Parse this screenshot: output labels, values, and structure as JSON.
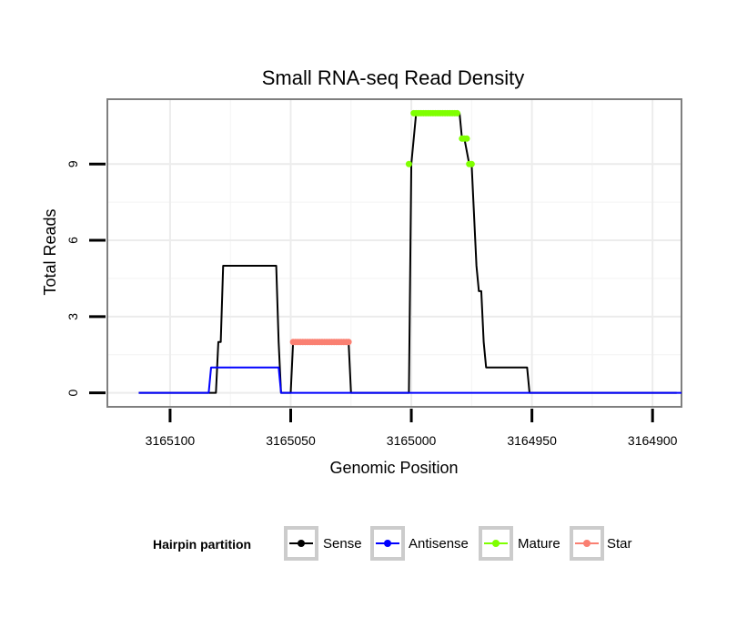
{
  "chart_data": {
    "type": "line",
    "title": "Small RNA-seq Read Density",
    "xlabel": "Genomic Position",
    "ylabel": "Total Reads",
    "x_reversed": true,
    "xlim": [
      3165126,
      3164888
    ],
    "ylim": [
      -0.55,
      11.55
    ],
    "xticks": [
      3165100,
      3165050,
      3165000,
      3164950,
      3164900
    ],
    "xtick_labels": [
      "3165100",
      "3165050",
      "3165000",
      "3164950",
      "3164900"
    ],
    "yticks": [
      0,
      3,
      6,
      9
    ],
    "ytick_labels": [
      "0",
      "3",
      "6",
      "9"
    ],
    "grid": true,
    "legend": {
      "title": "Hairpin partition",
      "position": "bottom",
      "entries": [
        {
          "name": "Sense",
          "color": "#000000"
        },
        {
          "name": "Antisense",
          "color": "#0000ff"
        },
        {
          "name": "Mature",
          "color": "#7fff00"
        },
        {
          "name": "Star",
          "color": "#fa8072"
        }
      ]
    },
    "series": [
      {
        "name": "Sense",
        "kind": "line",
        "color": "#000000",
        "x": [
          3165113,
          3165081,
          3165080,
          3165079,
          3165078,
          3165056,
          3165055,
          3165054,
          3165050,
          3165049,
          3165026,
          3165025,
          3165001,
          3165000,
          3164999,
          3164998,
          3164996,
          3164980,
          3164979,
          3164978,
          3164976,
          3164975,
          3164973,
          3164972,
          3164971,
          3164970,
          3164969,
          3164968,
          3164967,
          3164952,
          3164951,
          3164900,
          3164890
        ],
        "y": [
          0,
          0,
          2,
          2,
          5,
          5,
          2,
          0,
          0,
          2,
          2,
          0,
          0,
          9,
          10,
          11,
          11,
          11,
          10,
          10,
          9,
          9,
          5,
          4,
          4,
          2,
          1,
          1,
          1,
          1,
          0,
          0,
          0
        ]
      },
      {
        "name": "Antisense",
        "kind": "line",
        "color": "#0000ff",
        "x": [
          3165113,
          3165084,
          3165083,
          3165056,
          3165055,
          3165054,
          3164888
        ],
        "y": [
          0,
          0,
          1,
          1,
          1,
          0,
          0
        ]
      },
      {
        "name": "Mature",
        "kind": "points",
        "color": "#7fff00",
        "x": [
          3165001,
          3164999,
          3164998,
          3164997,
          3164996,
          3164995,
          3164994,
          3164993,
          3164992,
          3164991,
          3164990,
          3164989,
          3164988,
          3164987,
          3164986,
          3164985,
          3164984,
          3164983,
          3164982,
          3164981,
          3164979,
          3164978,
          3164977,
          3164976,
          3164975
        ],
        "y": [
          9,
          11,
          11,
          11,
          11,
          11,
          11,
          11,
          11,
          11,
          11,
          11,
          11,
          11,
          11,
          11,
          11,
          11,
          11,
          11,
          10,
          10,
          10,
          9,
          9
        ]
      },
      {
        "name": "Star",
        "kind": "points",
        "color": "#fa8072",
        "x": [
          3165049,
          3165048,
          3165047,
          3165046,
          3165045,
          3165044,
          3165043,
          3165042,
          3165041,
          3165040,
          3165039,
          3165038,
          3165037,
          3165036,
          3165035,
          3165034,
          3165033,
          3165032,
          3165031,
          3165030,
          3165029,
          3165028,
          3165027,
          3165026
        ],
        "y": [
          2,
          2,
          2,
          2,
          2,
          2,
          2,
          2,
          2,
          2,
          2,
          2,
          2,
          2,
          2,
          2,
          2,
          2,
          2,
          2,
          2,
          2,
          2,
          2
        ]
      }
    ]
  }
}
